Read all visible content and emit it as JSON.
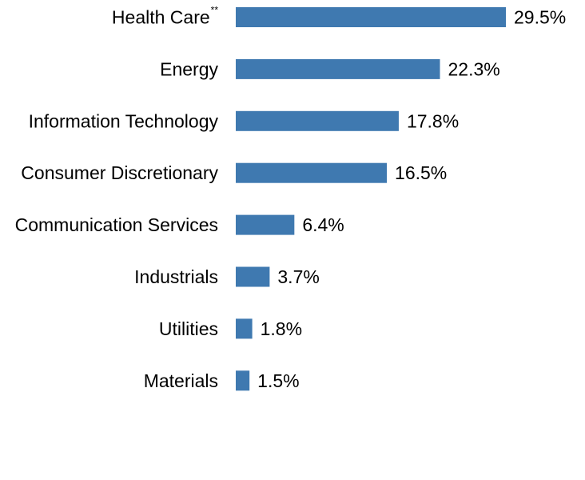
{
  "colors": {
    "bar": "#3f79b0",
    "text": "#000000",
    "background": "#ffffff"
  },
  "chart_data": {
    "type": "bar",
    "orientation": "horizontal",
    "title": "",
    "xlabel": "",
    "ylabel": "",
    "xlim": [
      0,
      29.5
    ],
    "grid": false,
    "categories": [
      {
        "label": "Health Care",
        "superscript": "**"
      },
      {
        "label": "Energy",
        "superscript": ""
      },
      {
        "label": "Information Technology",
        "superscript": ""
      },
      {
        "label": "Consumer Discretionary",
        "superscript": ""
      },
      {
        "label": "Communication Services",
        "superscript": ""
      },
      {
        "label": "Industrials",
        "superscript": ""
      },
      {
        "label": "Utilities",
        "superscript": ""
      },
      {
        "label": "Materials",
        "superscript": ""
      }
    ],
    "values": [
      29.5,
      22.3,
      17.8,
      16.5,
      6.4,
      3.7,
      1.8,
      1.5
    ],
    "value_labels": [
      "29.5%",
      "22.3%",
      "17.8%",
      "16.5%",
      "6.4%",
      "3.7%",
      "1.8%",
      "1.5%"
    ]
  }
}
